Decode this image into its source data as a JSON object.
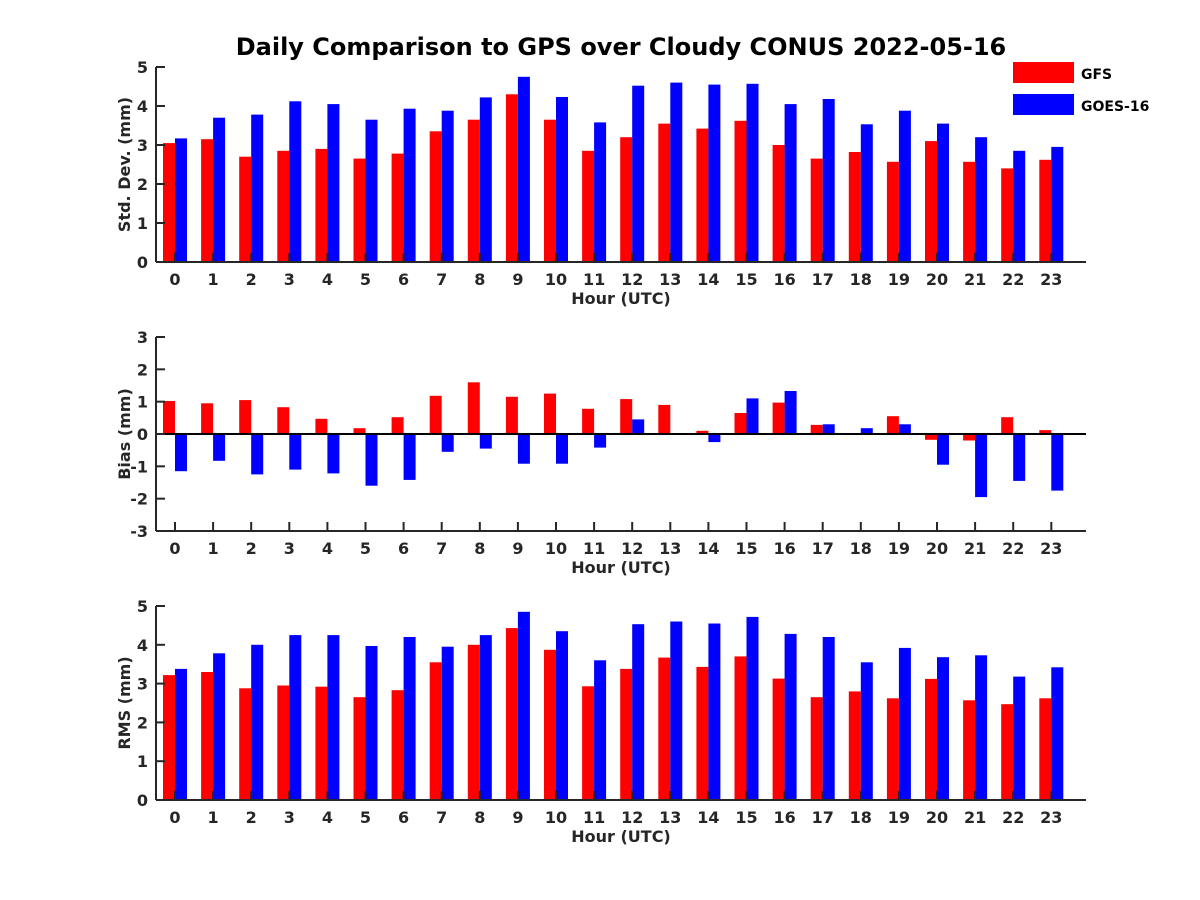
{
  "title": "Daily Comparison to GPS over Cloudy CONUS 2022-05-16",
  "colors": {
    "GFS": "#ff0000",
    "GOES-16": "#0000ff"
  },
  "legend": [
    {
      "name": "GFS",
      "color": "#ff0000"
    },
    {
      "name": "GOES-16",
      "color": "#0000ff"
    }
  ],
  "chart_data": [
    {
      "type": "bar",
      "categories": [
        "0",
        "1",
        "2",
        "3",
        "4",
        "5",
        "6",
        "7",
        "8",
        "9",
        "10",
        "11",
        "12",
        "13",
        "14",
        "15",
        "16",
        "17",
        "18",
        "19",
        "20",
        "21",
        "22",
        "23"
      ],
      "xlabel": "Hour (UTC)",
      "ylabel": "Std. Dev. (mm)",
      "ylim": [
        0,
        5
      ],
      "yticks": [
        "0",
        "1",
        "2",
        "3",
        "4",
        "5"
      ],
      "series": [
        {
          "name": "GFS",
          "values": [
            3.05,
            3.15,
            2.7,
            2.85,
            2.9,
            2.65,
            2.78,
            3.35,
            3.65,
            4.3,
            3.65,
            2.85,
            3.2,
            3.55,
            3.42,
            3.62,
            3.0,
            2.65,
            2.82,
            2.57,
            3.1,
            2.57,
            2.4,
            2.62
          ]
        },
        {
          "name": "GOES-16",
          "values": [
            3.17,
            3.7,
            3.78,
            4.12,
            4.05,
            3.65,
            3.93,
            3.88,
            4.22,
            4.75,
            4.23,
            3.58,
            4.52,
            4.6,
            4.55,
            4.57,
            4.05,
            4.18,
            3.53,
            3.88,
            3.55,
            3.2,
            2.85,
            2.95
          ]
        }
      ]
    },
    {
      "type": "bar",
      "categories": [
        "0",
        "1",
        "2",
        "3",
        "4",
        "5",
        "6",
        "7",
        "8",
        "9",
        "10",
        "11",
        "12",
        "13",
        "14",
        "15",
        "16",
        "17",
        "18",
        "19",
        "20",
        "21",
        "22",
        "23"
      ],
      "xlabel": "Hour (UTC)",
      "ylabel": "Bias (mm)",
      "ylim": [
        -3,
        3
      ],
      "yticks": [
        "-3",
        "-2",
        "-1",
        "0",
        "1",
        "2",
        "3"
      ],
      "series": [
        {
          "name": "GFS",
          "values": [
            1.02,
            0.95,
            1.05,
            0.83,
            0.47,
            0.18,
            0.52,
            1.18,
            1.6,
            1.15,
            1.25,
            0.78,
            1.08,
            0.9,
            0.1,
            0.65,
            0.97,
            0.28,
            0.0,
            0.55,
            -0.18,
            -0.2,
            0.52,
            0.12
          ]
        },
        {
          "name": "GOES-16",
          "values": [
            -1.15,
            -0.83,
            -1.25,
            -1.1,
            -1.22,
            -1.6,
            -1.42,
            -0.55,
            -0.45,
            -0.92,
            -0.92,
            -0.42,
            0.45,
            0.0,
            -0.25,
            1.1,
            1.33,
            0.3,
            0.18,
            0.3,
            -0.95,
            -1.95,
            -1.45,
            -1.75
          ]
        }
      ]
    },
    {
      "type": "bar",
      "categories": [
        "0",
        "1",
        "2",
        "3",
        "4",
        "5",
        "6",
        "7",
        "8",
        "9",
        "10",
        "11",
        "12",
        "13",
        "14",
        "15",
        "16",
        "17",
        "18",
        "19",
        "20",
        "21",
        "22",
        "23"
      ],
      "xlabel": "Hour (UTC)",
      "ylabel": "RMS (mm)",
      "ylim": [
        0,
        5
      ],
      "yticks": [
        "0",
        "1",
        "2",
        "3",
        "4",
        "5"
      ],
      "series": [
        {
          "name": "GFS",
          "values": [
            3.22,
            3.3,
            2.88,
            2.95,
            2.92,
            2.65,
            2.83,
            3.55,
            4.0,
            4.43,
            3.87,
            2.93,
            3.38,
            3.67,
            3.43,
            3.7,
            3.13,
            2.65,
            2.8,
            2.62,
            3.12,
            2.57,
            2.47,
            2.62
          ]
        },
        {
          "name": "GOES-16",
          "values": [
            3.38,
            3.78,
            4.0,
            4.25,
            4.25,
            3.97,
            4.2,
            3.95,
            4.25,
            4.85,
            4.35,
            3.6,
            4.53,
            4.6,
            4.55,
            4.72,
            4.28,
            4.2,
            3.55,
            3.92,
            3.68,
            3.73,
            3.18,
            3.42
          ]
        }
      ]
    }
  ]
}
